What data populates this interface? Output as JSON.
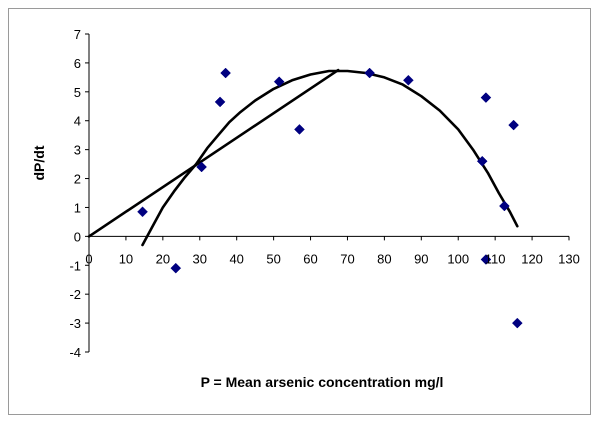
{
  "chart_data": {
    "type": "scatter",
    "title": "",
    "xlabel": "P = Mean arsenic concentration mg/l",
    "ylabel": "dP/dt",
    "xlim": [
      0,
      130
    ],
    "ylim": [
      -4,
      7
    ],
    "x_ticks": [
      "0",
      "10",
      "20",
      "30",
      "40",
      "50",
      "60",
      "70",
      "80",
      "90",
      "100",
      "110",
      "120",
      "130"
    ],
    "y_ticks": [
      "7",
      "6",
      "5",
      "4",
      "3",
      "2",
      "1",
      "0",
      "-1",
      "-2",
      "-3",
      "-4"
    ],
    "grid": false,
    "legend": "none",
    "series": [
      {
        "type": "scatter",
        "marker": "diamond",
        "color": "#000080",
        "points": [
          [
            14.5,
            0.85
          ],
          [
            23.5,
            -1.1
          ],
          [
            30.5,
            2.4
          ],
          [
            35.5,
            4.65
          ],
          [
            37,
            5.65
          ],
          [
            51.5,
            5.35
          ],
          [
            57,
            3.7
          ],
          [
            76,
            5.65
          ],
          [
            86.5,
            5.4
          ],
          [
            106.5,
            2.6
          ],
          [
            107.5,
            4.8
          ],
          [
            107.5,
            -0.8
          ],
          [
            112.5,
            1.05
          ],
          [
            115,
            3.85
          ],
          [
            116,
            -3.0
          ]
        ]
      },
      {
        "type": "line",
        "color": "#000000",
        "points": [
          [
            0,
            0
          ],
          [
            67.5,
            5.75
          ]
        ]
      },
      {
        "type": "line",
        "smooth": true,
        "color": "#000000",
        "points": [
          [
            14.5,
            -0.3
          ],
          [
            17,
            0.3
          ],
          [
            20,
            1.0
          ],
          [
            23,
            1.55
          ],
          [
            26,
            2.05
          ],
          [
            29,
            2.5
          ],
          [
            32,
            3.05
          ],
          [
            35,
            3.5
          ],
          [
            38,
            3.95
          ],
          [
            41,
            4.3
          ],
          [
            45,
            4.7
          ],
          [
            50,
            5.1
          ],
          [
            55,
            5.4
          ],
          [
            60,
            5.6
          ],
          [
            65,
            5.72
          ],
          [
            70,
            5.72
          ],
          [
            75,
            5.65
          ],
          [
            80,
            5.5
          ],
          [
            85,
            5.25
          ],
          [
            90,
            4.85
          ],
          [
            95,
            4.35
          ],
          [
            100,
            3.7
          ],
          [
            104,
            3.0
          ],
          [
            108,
            2.2
          ],
          [
            111,
            1.5
          ],
          [
            114,
            0.85
          ],
          [
            116,
            0.35
          ]
        ]
      }
    ]
  }
}
